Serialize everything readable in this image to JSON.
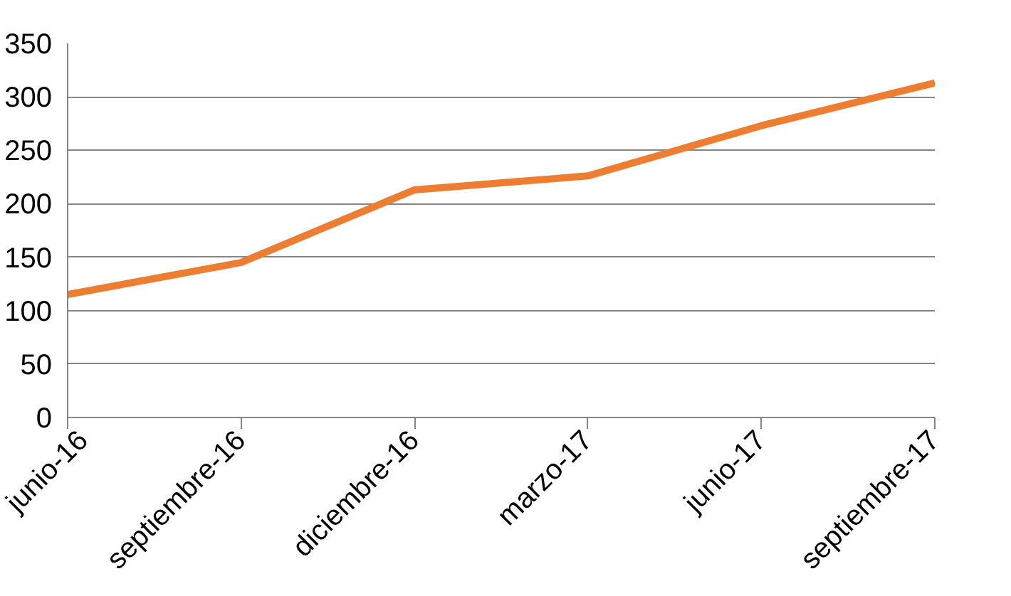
{
  "chart_data": {
    "type": "line",
    "categories": [
      "junio-16",
      "septiembre-16",
      "diciembre-16",
      "marzo-17",
      "junio-17",
      "septiembre-17"
    ],
    "series": [
      {
        "color": "#ed7d31",
        "values": [
          115,
          145,
          213,
          226,
          273,
          313
        ]
      }
    ],
    "ylim": [
      0,
      350
    ],
    "yticks": [
      0,
      50,
      100,
      150,
      200,
      250,
      300,
      350
    ],
    "grid": "y",
    "marker": "none",
    "line_style": "solid"
  }
}
